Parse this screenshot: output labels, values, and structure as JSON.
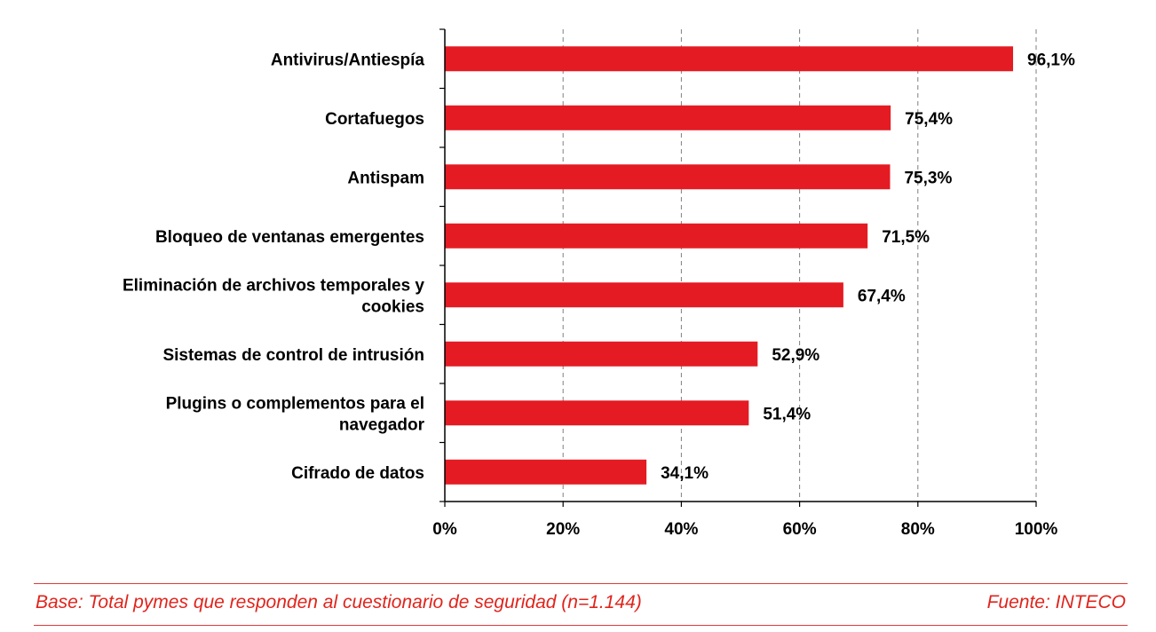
{
  "chart_data": {
    "type": "bar",
    "orientation": "horizontal",
    "categories": [
      [
        "Antivirus/Antiespía"
      ],
      [
        "Cortafuegos"
      ],
      [
        "Antispam"
      ],
      [
        "Bloqueo de ventanas  emergentes"
      ],
      [
        "Eliminación de archivos temporales  y",
        "cookies"
      ],
      [
        "Sistemas de control de intrusión"
      ],
      [
        "Plugins o complementos  para el",
        "navegador"
      ],
      [
        "Cifrado de datos"
      ]
    ],
    "values": [
      96.1,
      75.4,
      75.3,
      71.5,
      67.4,
      52.9,
      51.4,
      34.1
    ],
    "value_labels": [
      "96,1%",
      "75,4%",
      "75,3%",
      "71,5%",
      "67,4%",
      "52,9%",
      "51,4%",
      "34,1%"
    ],
    "xlim": [
      0,
      100
    ],
    "ticks": [
      0,
      20,
      40,
      60,
      80,
      100
    ],
    "tick_labels": [
      "0%",
      "20%",
      "40%",
      "60%",
      "80%",
      "100%"
    ],
    "grid": "vertical dashed",
    "bar_color": "#e41b23",
    "title": "",
    "xlabel": "",
    "ylabel": ""
  },
  "footer": {
    "base_text": "Base: Total pymes que responden al cuestionario de seguridad (n=1.144)",
    "source_text": "Fuente: INTECO"
  }
}
